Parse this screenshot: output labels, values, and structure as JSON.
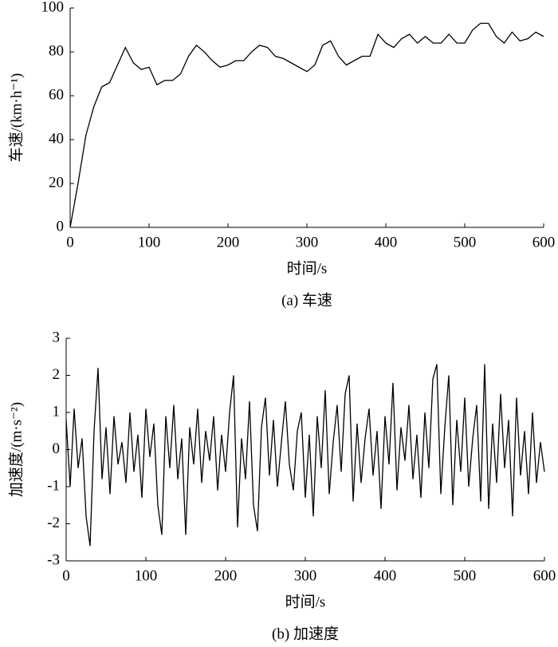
{
  "chart_data": [
    {
      "type": "line",
      "caption": "(a) 车速",
      "xlabel": "时间/s",
      "ylabel": "车速/(km·h⁻¹)",
      "color": "#000000",
      "xlim": [
        0,
        600
      ],
      "ylim": [
        0,
        100
      ],
      "xticks": [
        0,
        100,
        200,
        300,
        400,
        500,
        600
      ],
      "yticks": [
        0,
        20,
        40,
        60,
        80,
        100
      ],
      "x": [
        0,
        10,
        20,
        30,
        40,
        50,
        60,
        70,
        80,
        90,
        100,
        110,
        120,
        130,
        140,
        150,
        160,
        170,
        180,
        190,
        200,
        210,
        220,
        230,
        240,
        250,
        260,
        270,
        280,
        290,
        300,
        310,
        320,
        330,
        340,
        350,
        360,
        370,
        380,
        390,
        400,
        410,
        420,
        430,
        440,
        450,
        460,
        470,
        480,
        490,
        500,
        510,
        520,
        530,
        540,
        550,
        560,
        570,
        580,
        590,
        600
      ],
      "values": [
        0,
        20,
        42,
        55,
        64,
        66,
        74,
        82,
        75,
        72,
        73,
        65,
        67,
        67,
        70,
        78,
        83,
        80,
        76,
        73,
        74,
        76,
        76,
        80,
        83,
        82,
        78,
        77,
        75,
        73,
        71,
        74,
        83,
        85,
        78,
        74,
        76,
        78,
        78,
        88,
        84,
        82,
        86,
        88,
        84,
        87,
        84,
        84,
        88,
        84,
        84,
        90,
        93,
        93,
        87,
        84,
        89,
        85,
        86,
        89,
        87
      ]
    },
    {
      "type": "line",
      "caption": "(b) 加速度",
      "xlabel": "时间/s",
      "ylabel": "加速度/(m·s⁻²)",
      "color": "#000000",
      "xlim": [
        0,
        600
      ],
      "ylim": [
        -3,
        3
      ],
      "xticks": [
        0,
        100,
        200,
        300,
        400,
        500,
        600
      ],
      "yticks": [
        -3,
        -2,
        -1,
        0,
        1,
        2,
        3
      ],
      "x": [
        0,
        5,
        10,
        15,
        20,
        25,
        30,
        35,
        40,
        45,
        50,
        55,
        60,
        65,
        70,
        75,
        80,
        85,
        90,
        95,
        100,
        105,
        110,
        115,
        120,
        125,
        130,
        135,
        140,
        145,
        150,
        155,
        160,
        165,
        170,
        175,
        180,
        185,
        190,
        195,
        200,
        205,
        210,
        215,
        220,
        225,
        230,
        235,
        240,
        245,
        250,
        255,
        260,
        265,
        270,
        275,
        280,
        285,
        290,
        295,
        300,
        305,
        310,
        315,
        320,
        325,
        330,
        335,
        340,
        345,
        350,
        355,
        360,
        365,
        370,
        375,
        380,
        385,
        390,
        395,
        400,
        405,
        410,
        415,
        420,
        425,
        430,
        435,
        440,
        445,
        450,
        455,
        460,
        465,
        470,
        475,
        480,
        485,
        490,
        495,
        500,
        505,
        510,
        515,
        520,
        525,
        530,
        535,
        540,
        545,
        550,
        555,
        560,
        565,
        570,
        575,
        580,
        585,
        590,
        595,
        600
      ],
      "values": [
        0.8,
        -1.0,
        1.1,
        -0.5,
        0.3,
        -1.8,
        -2.6,
        0.5,
        2.2,
        -0.8,
        0.6,
        -1.2,
        0.9,
        -0.4,
        0.2,
        -0.9,
        1.0,
        -0.6,
        0.4,
        -1.3,
        1.1,
        -0.2,
        0.7,
        -1.5,
        -2.3,
        0.9,
        -0.5,
        1.2,
        -0.8,
        0.3,
        -2.3,
        0.6,
        -0.4,
        1.1,
        -0.9,
        0.5,
        -0.3,
        0.9,
        -1.1,
        0.4,
        -0.6,
        1.0,
        2.0,
        -2.1,
        0.3,
        -0.8,
        1.3,
        -1.5,
        -2.2,
        0.6,
        1.4,
        -0.7,
        0.8,
        -1.0,
        0.2,
        1.3,
        -0.4,
        -1.1,
        0.5,
        1.0,
        -1.3,
        0.4,
        -1.8,
        0.9,
        -0.5,
        1.6,
        -1.2,
        0.2,
        1.2,
        -0.6,
        1.5,
        2.0,
        -1.4,
        0.7,
        -0.9,
        0.3,
        1.1,
        -0.7,
        0.5,
        -1.6,
        0.9,
        -0.4,
        1.8,
        -1.1,
        0.6,
        -0.3,
        1.2,
        -0.8,
        0.4,
        -1.3,
        1.0,
        -0.5,
        1.9,
        2.3,
        -1.2,
        0.6,
        2.0,
        -1.5,
        0.8,
        -0.6,
        1.4,
        -1.0,
        0.3,
        1.2,
        -1.4,
        2.3,
        -1.6,
        0.7,
        -0.9,
        1.5,
        -0.5,
        0.8,
        -1.8,
        1.4,
        -0.7,
        0.5,
        -1.2,
        1.0,
        -0.9,
        0.2,
        -0.6
      ]
    }
  ]
}
